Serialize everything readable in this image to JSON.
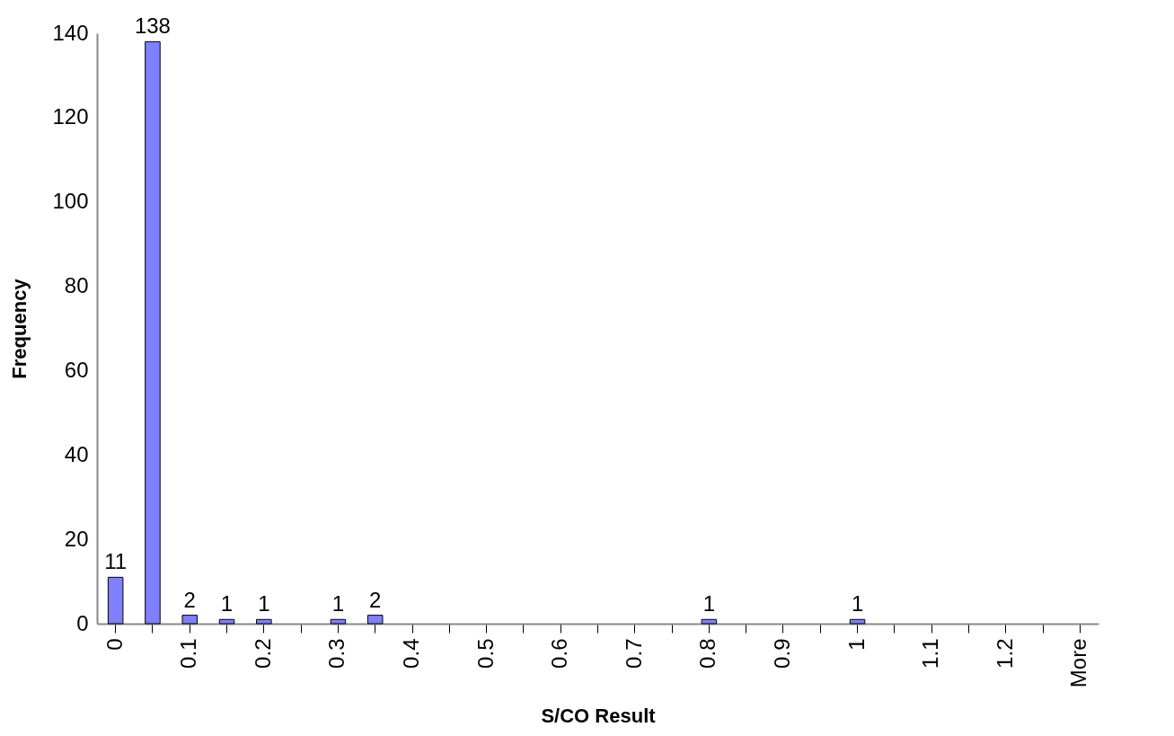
{
  "chart_data": {
    "type": "bar",
    "xlabel": "S/CO Result",
    "ylabel": "Frequency",
    "categories": [
      "0",
      null,
      "0.1",
      null,
      "0.2",
      null,
      "0.3",
      null,
      "0.4",
      null,
      "0.5",
      null,
      "0.6",
      null,
      "0.7",
      null,
      "0.8",
      null,
      "0.9",
      null,
      "1",
      null,
      "1.1",
      null,
      "1.2",
      null,
      "More"
    ],
    "values": [
      11,
      138,
      2,
      1,
      1,
      0,
      1,
      2,
      0,
      0,
      0,
      0,
      0,
      0,
      0,
      0,
      1,
      0,
      0,
      0,
      1,
      0,
      0,
      0,
      0,
      0,
      0
    ],
    "value_labels": [
      "11",
      "138",
      "2",
      "1",
      "1",
      null,
      "1",
      "2",
      null,
      null,
      null,
      null,
      null,
      null,
      null,
      null,
      "1",
      null,
      null,
      null,
      "1",
      null,
      null,
      null,
      null,
      null,
      null
    ],
    "color": "#8080ff",
    "ylim": [
      0,
      140
    ],
    "yticks": [
      0,
      20,
      40,
      60,
      80,
      100,
      120,
      140
    ],
    "grid": false
  }
}
